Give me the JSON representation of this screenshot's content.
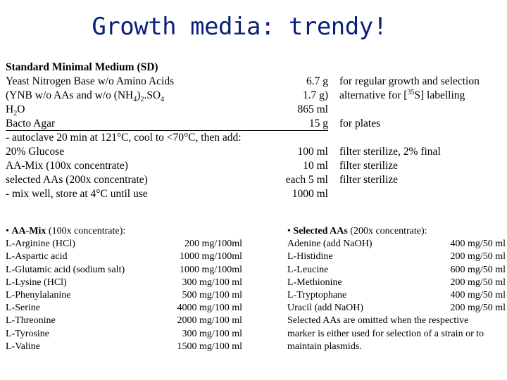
{
  "title": "Growth media: trendy!",
  "sd": {
    "heading": "Standard Minimal Medium (SD)",
    "rows": [
      {
        "name": "Yeast Nitrogen Base w/o Amino Acids",
        "amount": "6.7 g",
        "note": "for regular growth and selection"
      },
      {
        "name_pre": "(YNB w/o AAs and w/o (NH",
        "name_sub1": "4",
        "name_mid": ")",
        "name_sub2": "2",
        "name_post": ".SO",
        "name_sub3": "4",
        "amount": "1.7 g)",
        "note_pre": "alternative for [",
        "note_sup": "35",
        "note_post": "S] labelling"
      },
      {
        "name_pre": "H",
        "name_sub1": "2",
        "name_post": "O",
        "amount": "865 ml",
        "note": ""
      },
      {
        "name": "Bacto Agar",
        "amount": "15 g",
        "note": "for plates"
      },
      {
        "name": "- autoclave 20 min at 121°C, cool to <70°C, then add:",
        "amount": "",
        "note": ""
      },
      {
        "name": "20% Glucose",
        "amount": "100 ml",
        "note": "filter sterilize, 2% final"
      },
      {
        "name": "AA-Mix (100x concentrate)",
        "amount": "10 ml",
        "note": "filter sterilize"
      },
      {
        "name": "selected AAs (200x concentrate)",
        "amount": "each 5 ml",
        "note": "filter sterilize"
      },
      {
        "name": "- mix well, store at 4°C until use",
        "amount": "1000 ml",
        "note": ""
      }
    ]
  },
  "aa_mix": {
    "bullet": "•",
    "heading_bold": "AA-Mix",
    "heading_rest": " (100x concentrate):",
    "items": [
      {
        "name": "L-Arginine (HCl)",
        "amount": "200 mg/100ml"
      },
      {
        "name": "L-Aspartic acid",
        "amount": "1000 mg/100ml"
      },
      {
        "name": "L-Glutamic acid (sodium salt)",
        "amount": "1000 mg/100ml"
      },
      {
        "name": "L-Lysine (HCl)",
        "amount": "300 mg/100 ml"
      },
      {
        "name": "L-Phenylalanine",
        "amount": "500 mg/100 ml"
      },
      {
        "name": "L-Serine",
        "amount": "4000 mg/100 ml"
      },
      {
        "name": "L-Threonine",
        "amount": "2000 mg/100 ml"
      },
      {
        "name": "L-Tyrosine",
        "amount": "300 mg/100 ml"
      },
      {
        "name": "L-Valine",
        "amount": "1500 mg/100 ml"
      }
    ]
  },
  "selected_aas": {
    "bullet": "•",
    "heading_bold": "Selected AAs",
    "heading_rest": " (200x concentrate):",
    "items": [
      {
        "name": "Adenine (add NaOH)",
        "amount": "400 mg/50 ml"
      },
      {
        "name": "L-Histidine",
        "amount": "200 mg/50 ml"
      },
      {
        "name": "L-Leucine",
        "amount": "600 mg/50 ml"
      },
      {
        "name": "L-Methionine",
        "amount": "200 mg/50 ml"
      },
      {
        "name": "L-Tryptophane",
        "amount": "400 mg/50 ml"
      },
      {
        "name": "Uracil (add NaOH)",
        "amount": "200 mg/50 ml"
      }
    ],
    "note": "Selected AAs are omitted when the respective marker is either used for selection of a strain or to maintain plasmids."
  }
}
